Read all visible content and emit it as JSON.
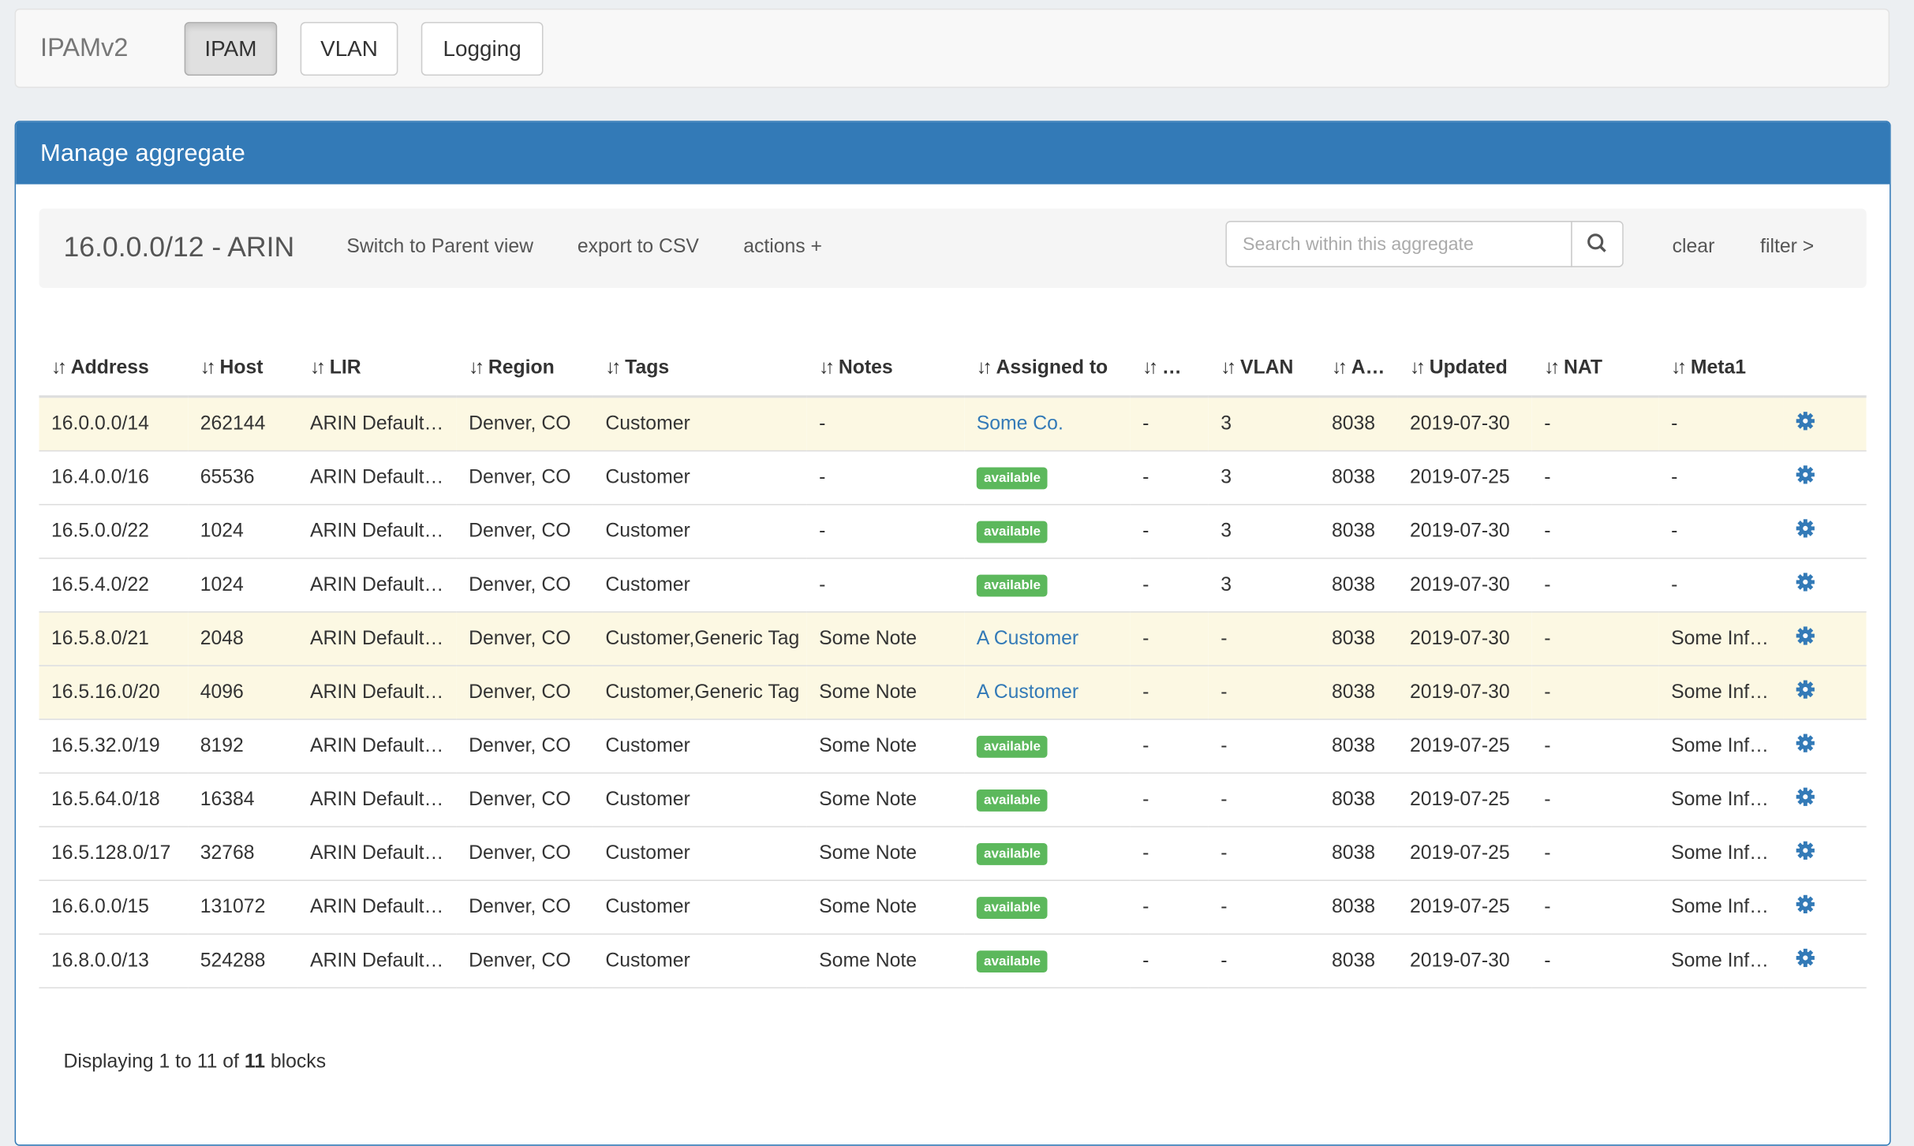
{
  "nav": {
    "brand": "IPAMv2",
    "tabs": [
      "IPAM",
      "VLAN",
      "Logging"
    ]
  },
  "panel": {
    "title": "Manage aggregate",
    "toolbar": {
      "aggregate": "16.0.0.0/12 - ARIN",
      "links": [
        "Switch to Parent view",
        "export to CSV",
        "actions +"
      ],
      "search_placeholder": "Search within this aggregate",
      "clear": "clear",
      "filter": "filter >"
    },
    "table": {
      "headers": [
        "Address",
        "Host",
        "LIR",
        "Region",
        "Tags",
        "Notes",
        "Assigned to",
        "…",
        "VLAN",
        "A…",
        "Updated",
        "NAT",
        "Meta1"
      ],
      "rows": [
        [
          "16.0.0.0/14",
          "262144",
          "ARIN Default…",
          "Denver, CO",
          "Customer",
          "-",
          {
            "text": "Some Co.",
            "kind": "link"
          },
          "-",
          "3",
          "8038",
          "2019-07-30",
          "-",
          "-"
        ],
        [
          "16.4.0.0/16",
          "65536",
          "ARIN Default…",
          "Denver, CO",
          "Customer",
          "-",
          {
            "text": "available",
            "kind": "badge"
          },
          "-",
          "3",
          "8038",
          "2019-07-25",
          "-",
          "-"
        ],
        [
          "16.5.0.0/22",
          "1024",
          "ARIN Default…",
          "Denver, CO",
          "Customer",
          "-",
          {
            "text": "available",
            "kind": "badge"
          },
          "-",
          "3",
          "8038",
          "2019-07-30",
          "-",
          "-"
        ],
        [
          "16.5.4.0/22",
          "1024",
          "ARIN Default…",
          "Denver, CO",
          "Customer",
          "-",
          {
            "text": "available",
            "kind": "badge"
          },
          "-",
          "3",
          "8038",
          "2019-07-30",
          "-",
          "-"
        ],
        [
          "16.5.8.0/21",
          "2048",
          "ARIN Default…",
          "Denver, CO",
          "Customer,Generic Tag",
          "Some Note",
          {
            "text": "A Customer",
            "kind": "link"
          },
          "-",
          "-",
          "8038",
          "2019-07-30",
          "-",
          "Some Inf…"
        ],
        [
          "16.5.16.0/20",
          "4096",
          "ARIN Default…",
          "Denver, CO",
          "Customer,Generic Tag",
          "Some Note",
          {
            "text": "A Customer",
            "kind": "link"
          },
          "-",
          "-",
          "8038",
          "2019-07-30",
          "-",
          "Some Inf…"
        ],
        [
          "16.5.32.0/19",
          "8192",
          "ARIN Default…",
          "Denver, CO",
          "Customer",
          "Some Note",
          {
            "text": "available",
            "kind": "badge"
          },
          "-",
          "-",
          "8038",
          "2019-07-25",
          "-",
          "Some Inf…"
        ],
        [
          "16.5.64.0/18",
          "16384",
          "ARIN Default…",
          "Denver, CO",
          "Customer",
          "Some Note",
          {
            "text": "available",
            "kind": "badge"
          },
          "-",
          "-",
          "8038",
          "2019-07-25",
          "-",
          "Some Inf…"
        ],
        [
          "16.5.128.0/17",
          "32768",
          "ARIN Default…",
          "Denver, CO",
          "Customer",
          "Some Note",
          {
            "text": "available",
            "kind": "badge"
          },
          "-",
          "-",
          "8038",
          "2019-07-25",
          "-",
          "Some Inf…"
        ],
        [
          "16.6.0.0/15",
          "131072",
          "ARIN Default…",
          "Denver, CO",
          "Customer",
          "Some Note",
          {
            "text": "available",
            "kind": "badge"
          },
          "-",
          "-",
          "8038",
          "2019-07-25",
          "-",
          "Some Inf…"
        ],
        [
          "16.8.0.0/13",
          "524288",
          "ARIN Default…",
          "Denver, CO",
          "Customer",
          "Some Note",
          {
            "text": "available",
            "kind": "badge"
          },
          "-",
          "-",
          "8038",
          "2019-07-30",
          "-",
          "Some Inf…"
        ]
      ]
    },
    "footer": {
      "prefix": "Displaying 1 to 11 of",
      "count": "11",
      "suffix": "blocks"
    }
  }
}
